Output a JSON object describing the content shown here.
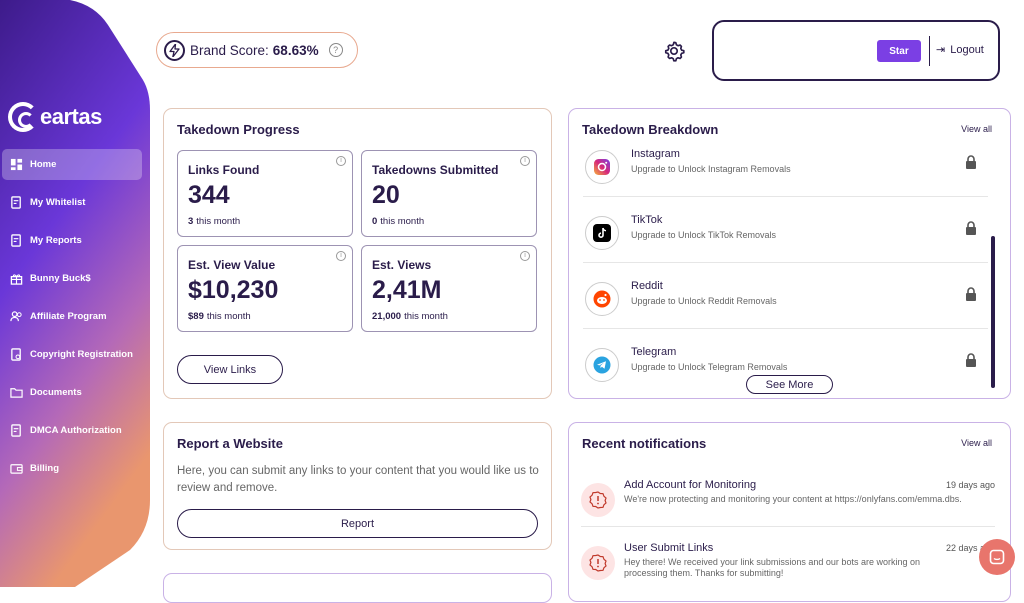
{
  "app": {
    "logo_text": "eartas"
  },
  "sidebar": {
    "items": [
      {
        "label": "Home",
        "icon": "dashboard-icon",
        "active": true
      },
      {
        "label": "My Whitelist",
        "icon": "document-check-icon"
      },
      {
        "label": "My Reports",
        "icon": "document-check-icon"
      },
      {
        "label": "Bunny Buck$",
        "icon": "gift-icon"
      },
      {
        "label": "Affiliate Program",
        "icon": "users-icon"
      },
      {
        "label": "Copyright Registration",
        "icon": "document-icon"
      },
      {
        "label": "Documents",
        "icon": "folder-icon"
      },
      {
        "label": "DMCA Authorization",
        "icon": "document-check-icon"
      },
      {
        "label": "Billing",
        "icon": "wallet-icon"
      }
    ]
  },
  "header": {
    "brand_label": "Brand Score:",
    "brand_value": "68.63%",
    "star_label": "Star",
    "logout_label": "Logout"
  },
  "takedown_progress": {
    "title": "Takedown Progress",
    "stats": [
      {
        "title": "Links Found",
        "value": "344",
        "count": "3",
        "suffix": "this month"
      },
      {
        "title": "Takedowns Submitted",
        "value": "20",
        "count": "0",
        "suffix": "this month"
      },
      {
        "title": "Est. View Value",
        "value": "$10,230",
        "count": "$89",
        "suffix": "this month"
      },
      {
        "title": "Est. Views",
        "value": "2,41M",
        "count": "21,000",
        "suffix": "this month"
      }
    ],
    "button_label": "View Links"
  },
  "takedown_breakdown": {
    "title": "Takedown Breakdown",
    "view_all": "View all",
    "platforms": [
      {
        "name": "Instagram",
        "sub": "Upgrade to Unlock Instagram Removals",
        "icon": "instagram-icon",
        "color": "#d6287a"
      },
      {
        "name": "TikTok",
        "sub": "Upgrade to Unlock TikTok Removals",
        "icon": "tiktok-icon",
        "color": "#000000"
      },
      {
        "name": "Reddit",
        "sub": "Upgrade to Unlock Reddit Removals",
        "icon": "reddit-icon",
        "color": "#ff4500"
      },
      {
        "name": "Telegram",
        "sub": "Upgrade to Unlock Telegram Removals",
        "icon": "telegram-icon",
        "color": "#2aa3e0"
      }
    ],
    "see_more": "See More"
  },
  "report_website": {
    "title": "Report a Website",
    "description": "Here, you can submit any links to your content that you would like us to review and remove.",
    "button_label": "Report"
  },
  "notifications": {
    "title": "Recent notifications",
    "view_all": "View all",
    "items": [
      {
        "title": "Add Account for Monitoring",
        "date": "19 days ago",
        "text": "We're now protecting and monitoring your content at https://onlyfans.com/emma.dbs."
      },
      {
        "title": "User Submit Links",
        "date": "22 days ago",
        "text": "Hey there! We received your link submissions and our bots are working on processing them. Thanks for submitting!"
      }
    ]
  },
  "colors": {
    "accent": "#7b3fe4",
    "dark": "#2a1c4a",
    "sidebar_top": "#3d1b8a",
    "sidebar_bottom": "#e9966e"
  }
}
